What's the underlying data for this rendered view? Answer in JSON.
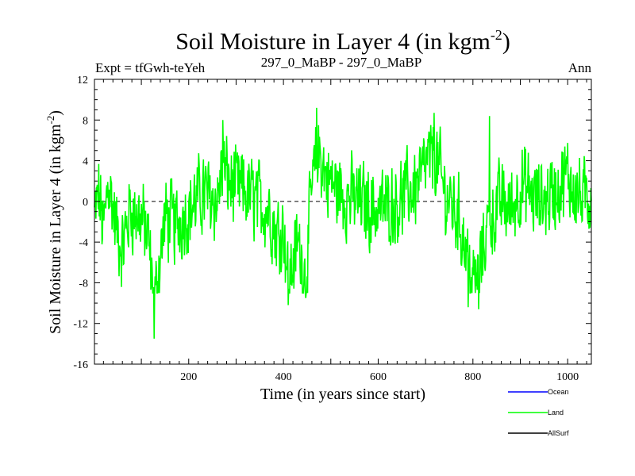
{
  "chart_data": {
    "type": "line",
    "title": "Soil Moisture in Layer 4 (in kgm",
    "title_sup": "-2",
    "title_tail": ")",
    "subtitle_left": "Expt = tfGwh-teYeh",
    "subtitle_center": "297_0_MaBP - 297_0_MaBP",
    "subtitle_right": "Ann",
    "xlabel": "Time (in years since start)",
    "ylabel": "Soil Moisture in Layer 4 (in kgm",
    "ylabel_sup": "-2",
    "ylabel_tail": ")",
    "xlim": [
      1,
      1050
    ],
    "ylim": [
      -16,
      12
    ],
    "x_ticks": [
      200,
      400,
      600,
      800,
      1000
    ],
    "y_ticks": [
      12,
      8,
      4,
      0,
      -4,
      -8,
      -12,
      -16
    ],
    "zero_line": 0,
    "series": [
      {
        "name": "Ocean",
        "color": "#0000ff",
        "values": []
      },
      {
        "name": "Land",
        "color": "#00ff00",
        "note": "annual values, years 1-1050; noisy series roughly within -13.5 to 9.5",
        "anchors": [
          [
            1,
            -2
          ],
          [
            10,
            1
          ],
          [
            20,
            -4
          ],
          [
            30,
            3
          ],
          [
            45,
            -3
          ],
          [
            60,
            -6
          ],
          [
            75,
            -1
          ],
          [
            100,
            -2
          ],
          [
            115,
            -5
          ],
          [
            127,
            -13.5
          ],
          [
            135,
            -9
          ],
          [
            150,
            -2
          ],
          [
            170,
            -3
          ],
          [
            200,
            -1
          ],
          [
            230,
            1
          ],
          [
            260,
            0
          ],
          [
            270,
            4
          ],
          [
            290,
            2
          ],
          [
            320,
            1
          ],
          [
            345,
            0
          ],
          [
            370,
            -1
          ],
          [
            385,
            -4
          ],
          [
            400,
            -3
          ],
          [
            410,
            -10
          ],
          [
            430,
            -5
          ],
          [
            447,
            -9.5
          ],
          [
            460,
            2
          ],
          [
            475,
            6
          ],
          [
            490,
            3
          ],
          [
            520,
            1
          ],
          [
            560,
            0
          ],
          [
            600,
            -1
          ],
          [
            640,
            0
          ],
          [
            680,
            2
          ],
          [
            718,
            6
          ],
          [
            740,
            1
          ],
          [
            770,
            -2
          ],
          [
            790,
            -7
          ],
          [
            800,
            -10.5
          ],
          [
            812,
            -9
          ],
          [
            830,
            -3
          ],
          [
            860,
            0
          ],
          [
            880,
            -1
          ],
          [
            900,
            2
          ],
          [
            940,
            0
          ],
          [
            970,
            1
          ],
          [
            1000,
            3
          ],
          [
            1030,
            0
          ],
          [
            1050,
            1
          ]
        ],
        "peaks": [
          [
            127,
            -13.5
          ],
          [
            410,
            -10.2
          ],
          [
            447,
            -9.5
          ],
          [
            470,
            9.2
          ],
          [
            718,
            8.7
          ],
          [
            790,
            -10.4
          ],
          [
            812,
            -10.6
          ],
          [
            835,
            8.4
          ],
          [
            272,
            8.0
          ]
        ]
      },
      {
        "name": "AllSurf",
        "color": "#000000",
        "values": []
      }
    ],
    "legend": [
      "Ocean",
      "Land",
      "AllSurf"
    ]
  }
}
